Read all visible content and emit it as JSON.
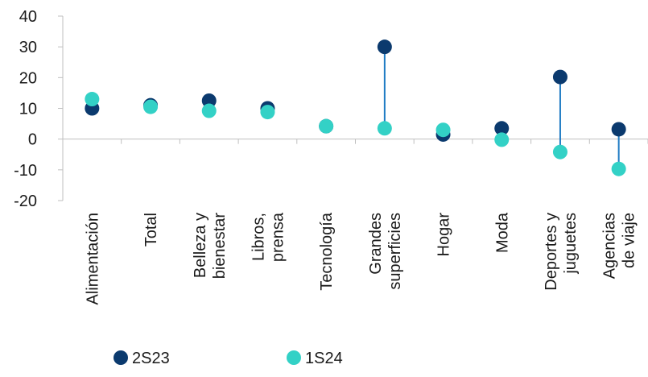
{
  "chart_data": {
    "type": "scatter",
    "categories": [
      [
        "Alimentación"
      ],
      [
        "Total"
      ],
      [
        "Belleza y",
        "bienestar"
      ],
      [
        "Libros,",
        "prensa"
      ],
      [
        "Tecnología"
      ],
      [
        "Grandes",
        "superficies"
      ],
      [
        "Hogar"
      ],
      [
        "Moda"
      ],
      [
        "Deportes y",
        "juguetes"
      ],
      [
        "Agencias",
        "de viaje"
      ]
    ],
    "series": [
      {
        "name": "2S23",
        "color": "#0b3a6e",
        "values": [
          10,
          11,
          12.5,
          10,
          4.2,
          30,
          1.5,
          3.5,
          20.2,
          3.2
        ]
      },
      {
        "name": "1S24",
        "color": "#33d1c6",
        "values": [
          13,
          10.5,
          9.2,
          8.8,
          4.2,
          3.5,
          3,
          -0.2,
          -4.2,
          -9.7
        ]
      }
    ],
    "connector_color": "#1f7bc4",
    "ylim": [
      -20,
      40
    ],
    "yticks": [
      "40",
      "30",
      "20",
      "10",
      "0",
      "-10",
      "-20"
    ],
    "grid": false,
    "legend_position": "bottom-left"
  }
}
